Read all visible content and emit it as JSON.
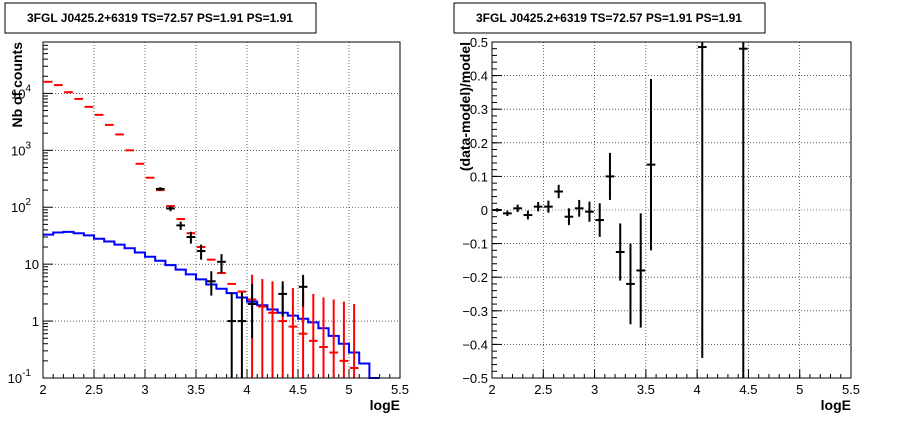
{
  "chart_data": [
    {
      "type": "scatter",
      "title": "3FGL J0425.2+6319 TS=72.57 PS=1.91 PS=1.91",
      "xlabel": "logE",
      "ylabel": "Nb of counts",
      "xlim": [
        2,
        5.5
      ],
      "ylim": [
        0.1,
        80000
      ],
      "yscale": "log",
      "grid": true,
      "x_ticks": [
        "2",
        "2.5",
        "3",
        "3.5",
        "4",
        "4.5",
        "5",
        "5.5"
      ],
      "y_ticks": [
        {
          "value": 0.1,
          "label": "10",
          "exp": "-1"
        },
        {
          "value": 1,
          "label": "1",
          "exp": ""
        },
        {
          "value": 10,
          "label": "10",
          "exp": ""
        },
        {
          "value": 100,
          "label": "10",
          "exp": "2"
        },
        {
          "value": 1000,
          "label": "10",
          "exp": "3"
        },
        {
          "value": 10000,
          "label": "10",
          "exp": "4"
        }
      ],
      "series": [
        {
          "color": "#0000ff",
          "style": "step",
          "x": [
            2.0,
            2.1,
            2.2,
            2.3,
            2.4,
            2.5,
            2.6,
            2.7,
            2.8,
            2.9,
            3.0,
            3.1,
            3.2,
            3.3,
            3.4,
            3.5,
            3.6,
            3.7,
            3.8,
            3.9,
            4.0,
            4.1,
            4.2,
            4.3,
            4.4,
            4.5,
            4.6,
            4.7,
            4.8,
            4.9,
            5.0,
            5.1,
            5.2
          ],
          "values": [
            33,
            36,
            37,
            35,
            32,
            28,
            25,
            22,
            19,
            16,
            13.5,
            11.5,
            9.6,
            8.0,
            6.6,
            5.4,
            4.4,
            3.7,
            3.1,
            2.6,
            2.2,
            1.9,
            1.6,
            1.4,
            1.25,
            1.1,
            0.95,
            0.75,
            0.55,
            0.4,
            0.28,
            0.18,
            0.1
          ]
        },
        {
          "color": "#ff0000",
          "style": "errorbar",
          "x": [
            2.05,
            2.15,
            2.25,
            2.35,
            2.45,
            2.55,
            2.65,
            2.75,
            2.85,
            2.95,
            3.05,
            3.15,
            3.25,
            3.35,
            3.45,
            3.55,
            3.65,
            3.75,
            3.85,
            3.95,
            4.05,
            4.15,
            4.25,
            4.35,
            4.45,
            4.55,
            4.65,
            4.75,
            4.85,
            4.95,
            5.05
          ],
          "values": [
            16000,
            14000,
            10500,
            8000,
            5800,
            4200,
            2800,
            1900,
            1000,
            580,
            330,
            200,
            105,
            62,
            35,
            20,
            12,
            7,
            4.5,
            3.3,
            2.4,
            1.8,
            1.4,
            1.0,
            0.8,
            0.6,
            0.45,
            0.35,
            0.28,
            0.2,
            0.15
          ],
          "err_low": [
            0,
            0,
            0,
            0,
            0,
            0,
            0,
            0,
            0,
            0,
            0,
            0,
            0,
            0,
            0,
            0,
            0,
            0,
            0,
            0,
            0.1,
            0.1,
            0.1,
            0.1,
            0.1,
            0.1,
            0.1,
            0.1,
            0.1,
            0.1,
            0.1
          ],
          "err_high": [
            0,
            0,
            0,
            0,
            0,
            0,
            0,
            0,
            0,
            0,
            0,
            0,
            0,
            0,
            0,
            0,
            0,
            0,
            0,
            0,
            6.5,
            5.5,
            5,
            4.2,
            3.8,
            3.3,
            3,
            2.6,
            2.4,
            2.2,
            2
          ]
        },
        {
          "color": "#000000",
          "style": "errorbar",
          "x": [
            3.15,
            3.25,
            3.35,
            3.45,
            3.55,
            3.65,
            3.75,
            3.85,
            3.95,
            4.05,
            4.35,
            4.55
          ],
          "values": [
            210,
            95,
            48,
            30,
            17,
            5,
            11,
            1,
            1,
            2,
            3,
            4
          ],
          "err_low": [
            195,
            85,
            40,
            23,
            12,
            2.8,
            7,
            0.1,
            0.1,
            0.5,
            1.2,
            1.8
          ],
          "err_high": [
            225,
            105,
            56,
            37,
            22,
            7.5,
            15,
            3.2,
            3.2,
            4.5,
            5,
            6.5
          ]
        }
      ]
    },
    {
      "type": "scatter",
      "title": "3FGL J0425.2+6319 TS=72.57 PS=1.91 PS=1.91",
      "xlabel": "logE",
      "ylabel": "(data-model)/model",
      "xlim": [
        2,
        5.5
      ],
      "ylim": [
        -0.5,
        0.5
      ],
      "grid": true,
      "x_ticks": [
        "2",
        "2.5",
        "3",
        "3.5",
        "4",
        "4.5",
        "5",
        "5.5"
      ],
      "y_ticks": [
        "−0.5",
        "−0.4",
        "−0.3",
        "−0.2",
        "−0.1",
        "0",
        "0.1",
        "0.2",
        "0.3",
        "0.4",
        "0.5"
      ],
      "series": [
        {
          "color": "#000000",
          "style": "errorbar",
          "x": [
            2.05,
            2.15,
            2.25,
            2.35,
            2.45,
            2.55,
            2.65,
            2.75,
            2.85,
            2.95,
            3.05,
            3.15,
            3.25,
            3.35,
            3.45,
            3.55,
            4.05,
            4.45
          ],
          "values": [
            0.0,
            -0.01,
            0.005,
            -0.015,
            0.01,
            0.01,
            0.055,
            -0.02,
            0.005,
            -0.005,
            -0.03,
            0.1,
            -0.125,
            -0.22,
            -0.18,
            0.135,
            0.485,
            0.48
          ],
          "err_low": [
            -0.005,
            -0.018,
            -0.006,
            -0.028,
            -0.004,
            -0.008,
            0.035,
            -0.045,
            -0.02,
            -0.035,
            -0.08,
            0.03,
            -0.21,
            -0.34,
            -0.35,
            -0.12,
            -0.44,
            -0.5
          ],
          "err_high": [
            0.005,
            -0.002,
            0.016,
            -0.002,
            0.024,
            0.028,
            0.075,
            0.005,
            0.03,
            0.025,
            0.02,
            0.17,
            -0.04,
            -0.1,
            -0.01,
            0.39,
            0.5,
            0.5
          ]
        }
      ]
    }
  ]
}
